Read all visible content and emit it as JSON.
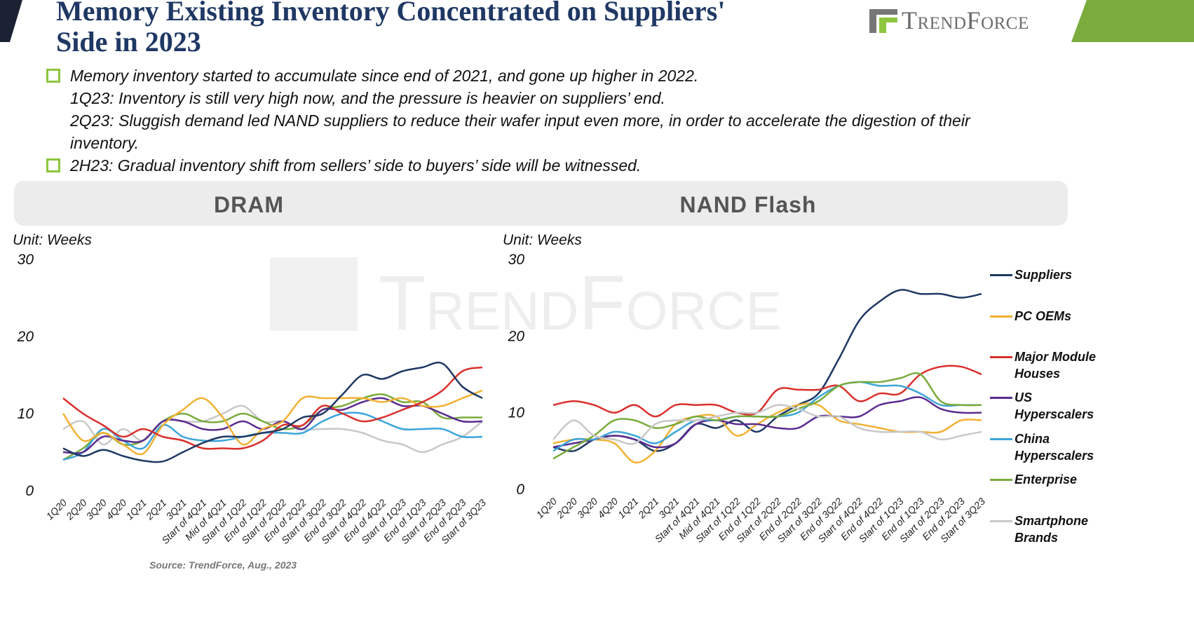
{
  "title": "Memory Existing Inventory Concentrated on Suppliers' Side in 2023",
  "logo": "TrendForce",
  "bullets": [
    [
      "Memory inventory started to accumulate since end of 2021, and gone up higher in 2022.",
      "1Q23: Inventory is still very high now, and the pressure is heavier on suppliers’ end.",
      "2Q23: Sluggish demand led NAND suppliers to reduce their wafer input even more, in order to accelerate the digestion of their inventory."
    ],
    [
      "2H23: Gradual inventory shift from sellers’ side to buyers’ side will be witnessed."
    ]
  ],
  "source": "Source: TrendForce, Aug., 2023",
  "chart_data": [
    {
      "type": "line",
      "title": "DRAM",
      "unit": "Unit: Weeks",
      "categories": [
        "1Q20",
        "2Q20",
        "3Q20",
        "4Q20",
        "1Q21",
        "2Q21",
        "3Q21",
        "Start of 4Q21",
        "Mid of 4Q21",
        "Start of 1Q22",
        "End of 1Q22",
        "Start of 2Q22",
        "End of 2Q22",
        "Start of 3Q22",
        "End of 3Q22",
        "Start of 4Q22",
        "End of 4Q22",
        "Start of 1Q23",
        "End of 1Q23",
        "Start of 2Q23",
        "End of 2Q23",
        "Start of 3Q23"
      ],
      "ylim": [
        0,
        30
      ],
      "yticks": [
        0,
        10,
        20,
        30
      ],
      "grid": false,
      "series": [
        {
          "color": "#c8c8c8",
          "values": [
            8.0,
            9.0,
            6.0,
            8.0,
            6.5,
            9.0,
            9.0,
            9.0,
            10.0,
            11.0,
            9.0,
            9.0,
            8.0,
            8.0,
            8.0,
            7.5,
            6.5,
            6.0,
            5.0,
            6.0,
            7.0,
            9.0
          ]
        },
        {
          "color": "#7aab3c",
          "values": [
            4.0,
            5.5,
            7.5,
            6.0,
            6.5,
            9.0,
            10.0,
            9.0,
            9.0,
            10.0,
            9.0,
            8.0,
            8.5,
            10.5,
            11.0,
            12.0,
            12.5,
            11.5,
            11.5,
            9.5,
            9.5,
            9.5
          ]
        },
        {
          "color": "#3da5d9",
          "values": [
            4.0,
            5.0,
            8.0,
            6.5,
            5.5,
            8.5,
            7.0,
            6.5,
            6.5,
            7.0,
            7.5,
            7.5,
            7.5,
            9.0,
            10.0,
            10.0,
            9.0,
            8.0,
            8.0,
            8.0,
            7.0,
            7.0
          ]
        },
        {
          "color": "#5b2c8f",
          "values": [
            5.0,
            5.0,
            7.0,
            6.5,
            6.5,
            9.0,
            9.0,
            8.0,
            8.0,
            9.0,
            8.0,
            9.0,
            8.0,
            10.5,
            10.5,
            11.5,
            12.0,
            11.0,
            11.0,
            10.0,
            9.0,
            9.0
          ]
        },
        {
          "color": "#f2b134",
          "values": [
            10.0,
            6.5,
            7.5,
            6.0,
            4.8,
            8.5,
            10.5,
            12.0,
            9.5,
            6.0,
            8.0,
            9.0,
            12.0,
            12.0,
            12.0,
            12.0,
            11.5,
            12.0,
            11.0,
            11.0,
            12.0,
            13.0
          ]
        },
        {
          "color": "#d9302c",
          "values": [
            12.0,
            10.0,
            8.5,
            7.0,
            8.0,
            7.0,
            6.5,
            5.5,
            5.5,
            5.5,
            6.5,
            8.5,
            8.5,
            11.0,
            10.0,
            9.0,
            9.5,
            10.5,
            11.5,
            13.0,
            15.5,
            16.0
          ]
        },
        {
          "color": "#1f3864",
          "values": [
            5.5,
            4.5,
            5.3,
            4.5,
            3.9,
            3.8,
            5.0,
            6.2,
            7.0,
            7.0,
            7.5,
            8.0,
            9.5,
            10.0,
            12.5,
            15.0,
            14.5,
            15.5,
            16.0,
            16.5,
            13.5,
            12.0
          ]
        }
      ]
    },
    {
      "type": "line",
      "title": "NAND Flash",
      "unit": "Unit: Weeks",
      "categories": [
        "1Q20",
        "2Q20",
        "3Q20",
        "4Q20",
        "1Q21",
        "2Q21",
        "3Q21",
        "Start of 4Q21",
        "Mid of 4Q21",
        "Start of 1Q22",
        "End of 1Q22",
        "Start of 2Q22",
        "End of 2Q22",
        "Start of 3Q22",
        "End of 3Q22",
        "Start of 4Q22",
        "End of 4Q22",
        "Start of 1Q23",
        "End of 1Q23",
        "Start of 2Q23",
        "End of 2Q23",
        "Start of 3Q23"
      ],
      "ylim": [
        0,
        30
      ],
      "yticks": [
        0,
        10,
        20,
        30
      ],
      "grid": false,
      "legend": "right",
      "series": [
        {
          "name": "Suppliers",
          "color": "#1f3864",
          "values": [
            5.5,
            5.0,
            6.5,
            7.0,
            6.5,
            5.0,
            6.0,
            8.5,
            8.0,
            9.0,
            7.5,
            9.5,
            11.0,
            12.5,
            17.0,
            22.0,
            24.5,
            26.0,
            25.5,
            25.5,
            25.0,
            25.5
          ]
        },
        {
          "name": "PC OEMs",
          "color": "#f2b134",
          "values": [
            6.0,
            6.5,
            6.5,
            6.0,
            3.5,
            5.0,
            8.5,
            9.5,
            9.5,
            7.0,
            8.5,
            10.0,
            11.0,
            11.0,
            9.0,
            8.5,
            8.0,
            7.5,
            7.5,
            7.5,
            9.0,
            9.0
          ]
        },
        {
          "name": "Major Module Houses",
          "color": "#d9302c",
          "values": [
            11.0,
            11.5,
            11.0,
            10.0,
            11.0,
            9.5,
            11.0,
            11.0,
            11.0,
            10.0,
            10.0,
            13.0,
            13.0,
            13.0,
            13.5,
            11.5,
            12.5,
            12.5,
            15.0,
            16.0,
            16.0,
            15.0
          ]
        },
        {
          "name": "US Hyperscalers",
          "color": "#5b2c8f",
          "values": [
            5.5,
            6.0,
            6.5,
            7.0,
            6.5,
            5.5,
            6.0,
            8.5,
            9.0,
            8.5,
            8.5,
            8.0,
            8.0,
            9.5,
            9.5,
            9.5,
            11.0,
            11.5,
            12.0,
            10.5,
            10.0,
            10.0
          ]
        },
        {
          "name": "China Hyperscalers",
          "color": "#3da5d9",
          "values": [
            5.0,
            6.5,
            6.5,
            7.5,
            7.0,
            6.0,
            7.5,
            9.0,
            9.0,
            9.5,
            9.5,
            9.5,
            10.0,
            12.0,
            13.5,
            14.0,
            13.5,
            13.5,
            12.5,
            11.0,
            11.0,
            11.0
          ]
        },
        {
          "name": "Enterprise",
          "color": "#7aab3c",
          "values": [
            4.0,
            5.5,
            7.0,
            9.0,
            9.0,
            8.0,
            8.5,
            9.5,
            9.0,
            9.5,
            9.5,
            9.5,
            10.5,
            11.5,
            13.5,
            14.0,
            14.0,
            14.5,
            15.0,
            11.5,
            11.0,
            11.0
          ]
        },
        {
          "name": "Smartphone Brands",
          "color": "#c8c8c8",
          "values": [
            6.5,
            9.0,
            7.0,
            6.5,
            6.0,
            8.5,
            9.0,
            9.0,
            9.5,
            10.0,
            10.0,
            11.0,
            10.5,
            9.5,
            9.5,
            8.0,
            7.5,
            7.5,
            7.5,
            6.5,
            7.0,
            7.5
          ]
        }
      ]
    }
  ]
}
